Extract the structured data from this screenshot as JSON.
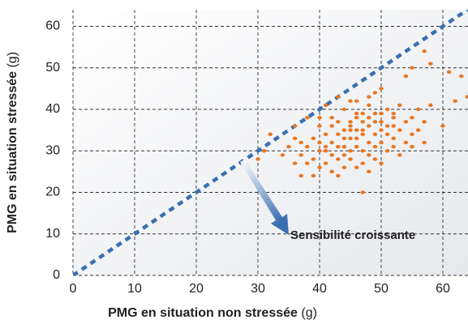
{
  "chart_data": {
    "type": "scatter",
    "xlabel": "PMG en situation non stressée",
    "xlabel_unit": "(g)",
    "ylabel": "PMG en situation stressée",
    "ylabel_unit": "(g)",
    "annotation": "Sensibilité croissante",
    "xlim": [
      0,
      64
    ],
    "ylim": [
      0,
      64
    ],
    "xticks": [
      0,
      10,
      20,
      30,
      40,
      50,
      60
    ],
    "yticks": [
      0,
      10,
      20,
      30,
      40,
      50,
      60
    ],
    "grid": true,
    "reference_line": {
      "color": "#3a6fb0",
      "x": [
        0,
        64
      ],
      "y": [
        0,
        64
      ]
    },
    "series": [
      {
        "color": "#e87722",
        "x": [
          57,
          58,
          55,
          54,
          61,
          63,
          64,
          64.5,
          60,
          62,
          57,
          55,
          47,
          39,
          37,
          36,
          34,
          31,
          30,
          32,
          38,
          41,
          43,
          45,
          49,
          50,
          53,
          56,
          56,
          58,
          52,
          51,
          48,
          46,
          44,
          42,
          40,
          39,
          40,
          41,
          42,
          43,
          44,
          45,
          46,
          47,
          48,
          49,
          50,
          51,
          52,
          53,
          54,
          50,
          46,
          45,
          44,
          43,
          47,
          48,
          49,
          46,
          44,
          43,
          41,
          42,
          40,
          38,
          37,
          36,
          35,
          39,
          41,
          45,
          47,
          48,
          50,
          51,
          52,
          53,
          47,
          45,
          44,
          42,
          43,
          46,
          48,
          49,
          50,
          52,
          54,
          55,
          49,
          47,
          45,
          44,
          41,
          38,
          40,
          42,
          46,
          50,
          48,
          43,
          45,
          47,
          49,
          51,
          36,
          37,
          40,
          46,
          48,
          52,
          55,
          57
        ],
        "values": [
          54,
          51,
          50,
          48,
          49,
          48,
          43,
          37,
          36,
          42,
          32,
          31,
          20,
          24,
          24,
          27,
          29,
          30,
          28,
          34,
          38,
          41,
          43,
          42,
          44,
          45,
          41,
          40,
          35,
          41,
          38,
          40,
          41,
          39,
          40,
          38,
          36,
          33,
          30,
          27,
          25,
          28,
          31,
          33,
          35,
          37,
          36,
          34,
          32,
          30,
          33,
          35,
          37,
          37,
          31,
          28,
          26,
          24,
          27,
          29,
          31,
          33,
          35,
          37,
          34,
          32,
          32,
          31,
          29,
          33,
          31,
          28,
          30,
          37,
          34,
          32,
          35,
          36,
          31,
          29,
          39,
          36,
          33,
          36,
          34,
          38,
          38,
          37,
          39,
          36,
          32,
          34,
          28,
          30,
          30,
          29,
          31,
          27,
          26,
          29,
          26,
          27,
          25,
          31,
          35,
          35,
          39,
          34,
          36,
          32,
          38,
          42,
          43,
          39,
          38,
          37
        ]
      }
    ]
  }
}
